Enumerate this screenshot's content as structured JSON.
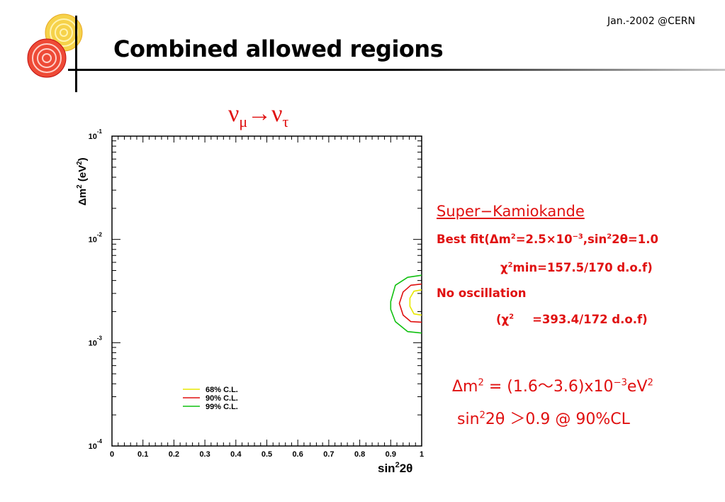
{
  "header": {
    "date": "Jan.-2002 @CERN",
    "title": "Combined allowed regions"
  },
  "oscillation_label": {
    "nu1": "ν",
    "flavor1": "μ",
    "arrow": "→",
    "nu2": "ν",
    "flavor2": "τ"
  },
  "super_k": {
    "title": "Super−Kamiokande",
    "best_fit_a": "Best fit(Δm",
    "best_fit_b": "2",
    "best_fit_c": "=2.5×10",
    "best_fit_d": "−3",
    "best_fit_e": ",sin",
    "best_fit_f": "2",
    "best_fit_g": "2θ=1.0",
    "chi_min_a": "χ",
    "chi_min_b": "2",
    "chi_min_c": "min=157.5/170 d.o.f)",
    "no_osc": "No oscillation",
    "chi_no_a": "(χ",
    "chi_no_b": "2",
    "chi_no_c": "=393.4/172 d.o.f)"
  },
  "result": {
    "dm2_a": "Δm",
    "dm2_b": "2",
    "dm2_c": " = (1.6〜3.6)x10",
    "dm2_d": "−3",
    "dm2_e": "eV",
    "dm2_f": "2",
    "sin_a": "sin",
    "sin_b": "2",
    "sin_c": "2θ ＞0.9  @ 90%CL"
  },
  "chart_data": {
    "type": "line",
    "xlabel_a": "sin",
    "xlabel_b": "2",
    "xlabel_c": "2θ",
    "ylabel_a": "Δm",
    "ylabel_b": "2",
    "ylabel_c": " (eV",
    "ylabel_d": "2",
    "ylabel_e": ")",
    "xlim": [
      0,
      1
    ],
    "ylim": [
      0.0001,
      0.1
    ],
    "yscale": "log",
    "x_ticks": [
      "0",
      "0.1",
      "0.2",
      "0.3",
      "0.4",
      "0.5",
      "0.6",
      "0.7",
      "0.8",
      "0.9",
      "1"
    ],
    "y_ticks": [
      {
        "value": 0.1,
        "base": "10",
        "exp": "-1"
      },
      {
        "value": 0.01,
        "base": "10",
        "exp": "-2"
      },
      {
        "value": 0.001,
        "base": "10",
        "exp": "-3"
      },
      {
        "value": 0.0001,
        "base": "10",
        "exp": "-4"
      }
    ],
    "legend": "bottom-left",
    "series": [
      {
        "name": "68% C.L.",
        "color": "#e8e800",
        "points": [
          [
            1.0,
            0.00325
          ],
          [
            0.975,
            0.00315
          ],
          [
            0.962,
            0.0027
          ],
          [
            0.962,
            0.00225
          ],
          [
            0.975,
            0.0019
          ],
          [
            1.0,
            0.00185
          ]
        ]
      },
      {
        "name": "90% C.L.",
        "color": "#e01010",
        "points": [
          [
            1.0,
            0.0037
          ],
          [
            0.965,
            0.0036
          ],
          [
            0.94,
            0.0031
          ],
          [
            0.928,
            0.0024
          ],
          [
            0.94,
            0.00185
          ],
          [
            0.965,
            0.0016
          ],
          [
            1.0,
            0.00158
          ]
        ]
      },
      {
        "name": "99% C.L.",
        "color": "#10c010",
        "points": [
          [
            1.0,
            0.0045
          ],
          [
            0.955,
            0.0043
          ],
          [
            0.915,
            0.0036
          ],
          [
            0.9,
            0.0025
          ],
          [
            0.9,
            0.0021
          ],
          [
            0.915,
            0.0016
          ],
          [
            0.955,
            0.00128
          ],
          [
            1.0,
            0.00124
          ]
        ]
      }
    ]
  }
}
